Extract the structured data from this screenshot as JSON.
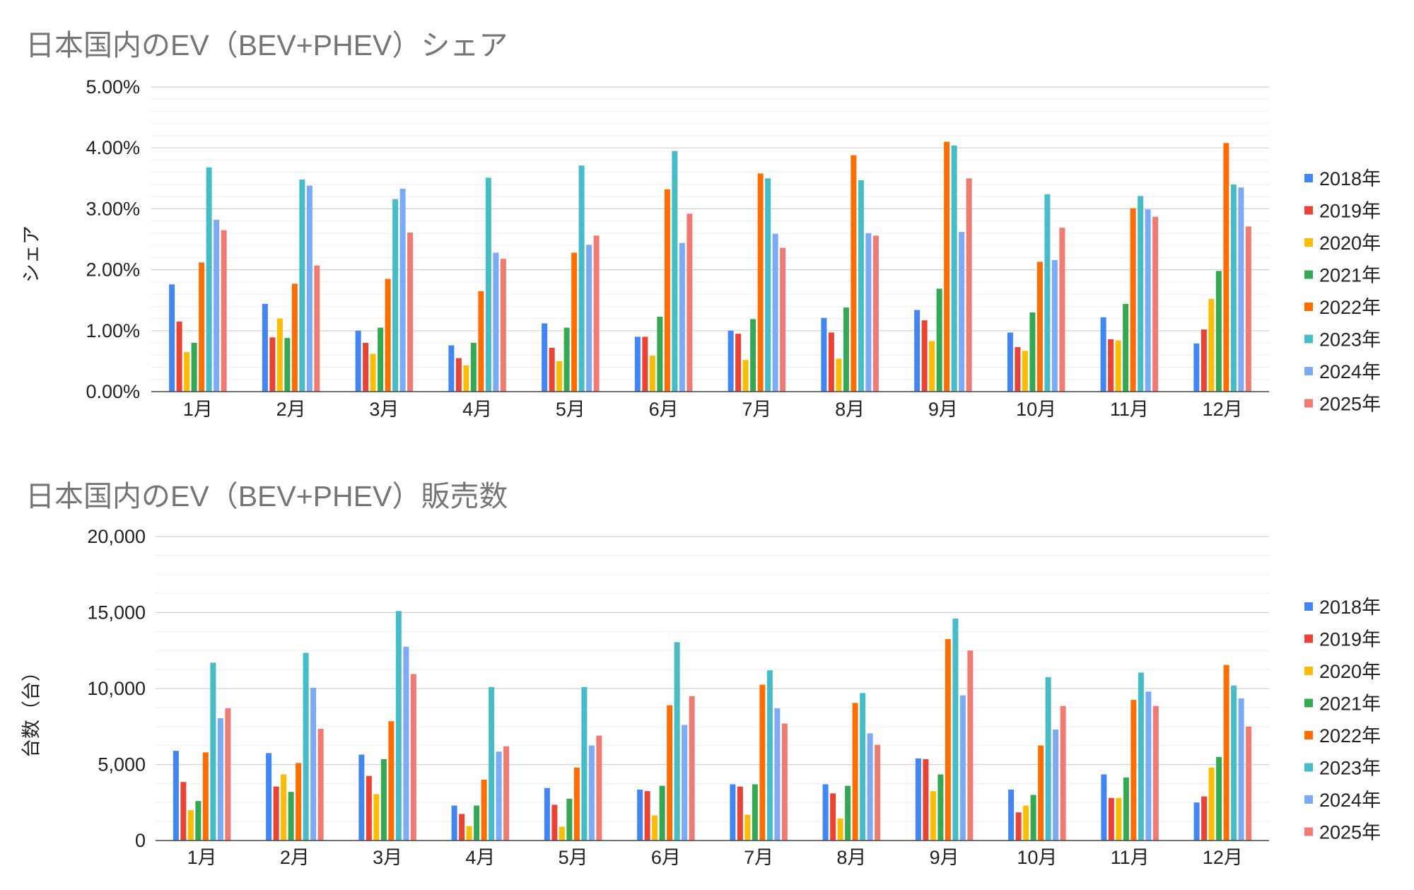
{
  "chart_data": [
    {
      "type": "bar",
      "title": "日本国内のEV（BEV+PHEV）シェア",
      "xlabel": "",
      "ylabel": "シェア",
      "ylim": [
        0,
        5
      ],
      "y_ticks": [
        "0.00%",
        "1.00%",
        "2.00%",
        "3.00%",
        "4.00%",
        "5.00%"
      ],
      "grid": true,
      "legend_position": "right",
      "categories": [
        "1月",
        "2月",
        "3月",
        "4月",
        "5月",
        "6月",
        "7月",
        "8月",
        "9月",
        "10月",
        "11月",
        "12月"
      ],
      "series": [
        {
          "name": "2018年",
          "color": "#4285f4",
          "values": [
            1.76,
            1.44,
            1.0,
            0.76,
            1.12,
            0.9,
            1.0,
            1.21,
            1.34,
            0.97,
            1.22,
            0.79
          ]
        },
        {
          "name": "2019年",
          "color": "#ea4335",
          "values": [
            1.15,
            0.89,
            0.8,
            0.55,
            0.72,
            0.9,
            0.95,
            0.97,
            1.17,
            0.73,
            0.86,
            1.02
          ]
        },
        {
          "name": "2020年",
          "color": "#fbbc04",
          "values": [
            0.65,
            1.2,
            0.62,
            0.43,
            0.5,
            0.59,
            0.52,
            0.54,
            0.83,
            0.67,
            0.84,
            1.52
          ]
        },
        {
          "name": "2021年",
          "color": "#34a853",
          "values": [
            0.8,
            0.88,
            1.05,
            0.8,
            1.05,
            1.23,
            1.19,
            1.38,
            1.69,
            1.3,
            1.44,
            1.98
          ]
        },
        {
          "name": "2022年",
          "color": "#ff6d01",
          "values": [
            2.12,
            1.77,
            1.85,
            1.65,
            2.28,
            3.32,
            3.58,
            3.88,
            4.1,
            2.13,
            3.01,
            4.08
          ]
        },
        {
          "name": "2023年",
          "color": "#46bdc6",
          "values": [
            3.68,
            3.48,
            3.16,
            3.51,
            3.71,
            3.95,
            3.5,
            3.47,
            4.04,
            3.24,
            3.21,
            3.4
          ]
        },
        {
          "name": "2024年",
          "color": "#7baaf7",
          "values": [
            2.82,
            3.38,
            3.33,
            2.28,
            2.41,
            2.44,
            2.59,
            2.6,
            2.62,
            2.16,
            2.99,
            3.35
          ]
        },
        {
          "name": "2025年",
          "color": "#f07b72",
          "values": [
            2.65,
            2.07,
            2.61,
            2.18,
            2.56,
            2.92,
            2.36,
            2.56,
            3.5,
            2.69,
            2.87,
            2.71
          ]
        }
      ]
    },
    {
      "type": "bar",
      "title": "日本国内のEV（BEV+PHEV）販売数",
      "xlabel": "",
      "ylabel": "台数（台）",
      "ylim": [
        0,
        20000
      ],
      "y_ticks": [
        "0",
        "5,000",
        "10,000",
        "15,000",
        "20,000"
      ],
      "grid": true,
      "legend_position": "right",
      "categories": [
        "1月",
        "2月",
        "3月",
        "4月",
        "5月",
        "6月",
        "7月",
        "8月",
        "9月",
        "10月",
        "11月",
        "12月"
      ],
      "series": [
        {
          "name": "2018年",
          "color": "#4285f4",
          "values": [
            5900,
            5750,
            5650,
            2300,
            3450,
            3350,
            3700,
            3700,
            5400,
            3350,
            4350,
            2500
          ]
        },
        {
          "name": "2019年",
          "color": "#ea4335",
          "values": [
            3850,
            3550,
            4250,
            1750,
            2350,
            3250,
            3550,
            3100,
            5350,
            1850,
            2800,
            2900
          ]
        },
        {
          "name": "2020年",
          "color": "#fbbc04",
          "values": [
            2000,
            4350,
            3050,
            950,
            900,
            1650,
            1700,
            1450,
            3250,
            2300,
            2800,
            4800
          ]
        },
        {
          "name": "2021年",
          "color": "#34a853",
          "values": [
            2600,
            3200,
            5350,
            2300,
            2750,
            3600,
            3700,
            3600,
            4350,
            3000,
            4150,
            5500
          ]
        },
        {
          "name": "2022年",
          "color": "#ff6d01",
          "values": [
            5800,
            5100,
            7850,
            4000,
            4800,
            8900,
            10250,
            9050,
            13250,
            6250,
            9250,
            11550
          ]
        },
        {
          "name": "2023年",
          "color": "#46bdc6",
          "values": [
            11700,
            12350,
            15100,
            10100,
            10100,
            13050,
            11200,
            9700,
            14600,
            10750,
            11050,
            10200
          ]
        },
        {
          "name": "2024年",
          "color": "#7baaf7",
          "values": [
            8050,
            10050,
            12750,
            5850,
            6250,
            7600,
            8700,
            7050,
            9550,
            7300,
            9800,
            9350
          ]
        },
        {
          "name": "2025年",
          "color": "#f07b72",
          "values": [
            8700,
            7350,
            10950,
            6200,
            6900,
            9500,
            7700,
            6300,
            12500,
            8850,
            8850,
            7500
          ]
        }
      ]
    }
  ]
}
